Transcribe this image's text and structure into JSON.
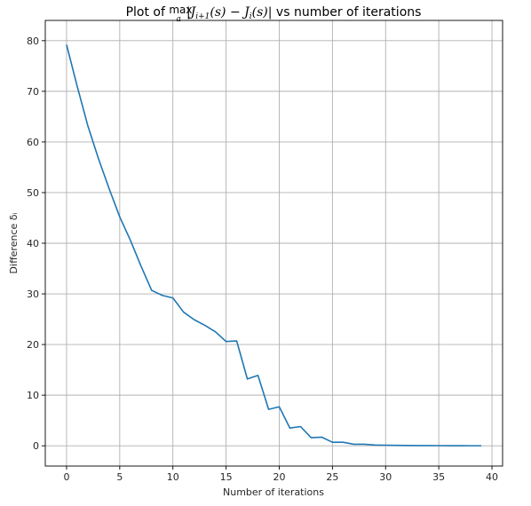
{
  "chart_data": {
    "type": "line",
    "title_prefix": "Plot of ",
    "title_max_word": "max",
    "title_max_sub": "a",
    "title_math": "|J",
    "title_sub_1": "i+1",
    "title_math_2": "(s) − J",
    "title_sub_2": "i",
    "title_math_3": "(s)|",
    "title_suffix": " vs number of iterations",
    "xlabel": "Number of iterations",
    "ylabel": "Difference δᵢ",
    "xlim": [
      -2,
      41
    ],
    "ylim": [
      -4,
      84
    ],
    "xticks": [
      0,
      5,
      10,
      15,
      20,
      25,
      30,
      35,
      40
    ],
    "yticks": [
      0,
      10,
      20,
      30,
      40,
      50,
      60,
      70,
      80
    ],
    "grid": true,
    "line_color": "#1f77b4",
    "x": [
      0,
      1,
      2,
      3,
      4,
      5,
      6,
      7,
      8,
      9,
      10,
      11,
      12,
      13,
      14,
      15,
      16,
      17,
      18,
      19,
      20,
      21,
      22,
      23,
      24,
      25,
      26,
      27,
      28,
      29,
      30,
      31,
      32,
      33,
      34,
      35,
      36,
      37,
      38,
      39
    ],
    "y": [
      79.2,
      71.0,
      63.2,
      56.7,
      50.8,
      45.2,
      40.6,
      35.5,
      30.7,
      29.7,
      29.2,
      26.4,
      24.9,
      23.8,
      22.5,
      20.6,
      20.7,
      13.2,
      13.9,
      7.2,
      7.7,
      3.5,
      3.8,
      1.6,
      1.7,
      0.7,
      0.7,
      0.3,
      0.3,
      0.15,
      0.12,
      0.08,
      0.06,
      0.05,
      0.04,
      0.03,
      0.02,
      0.02,
      0.01,
      0.01
    ]
  }
}
